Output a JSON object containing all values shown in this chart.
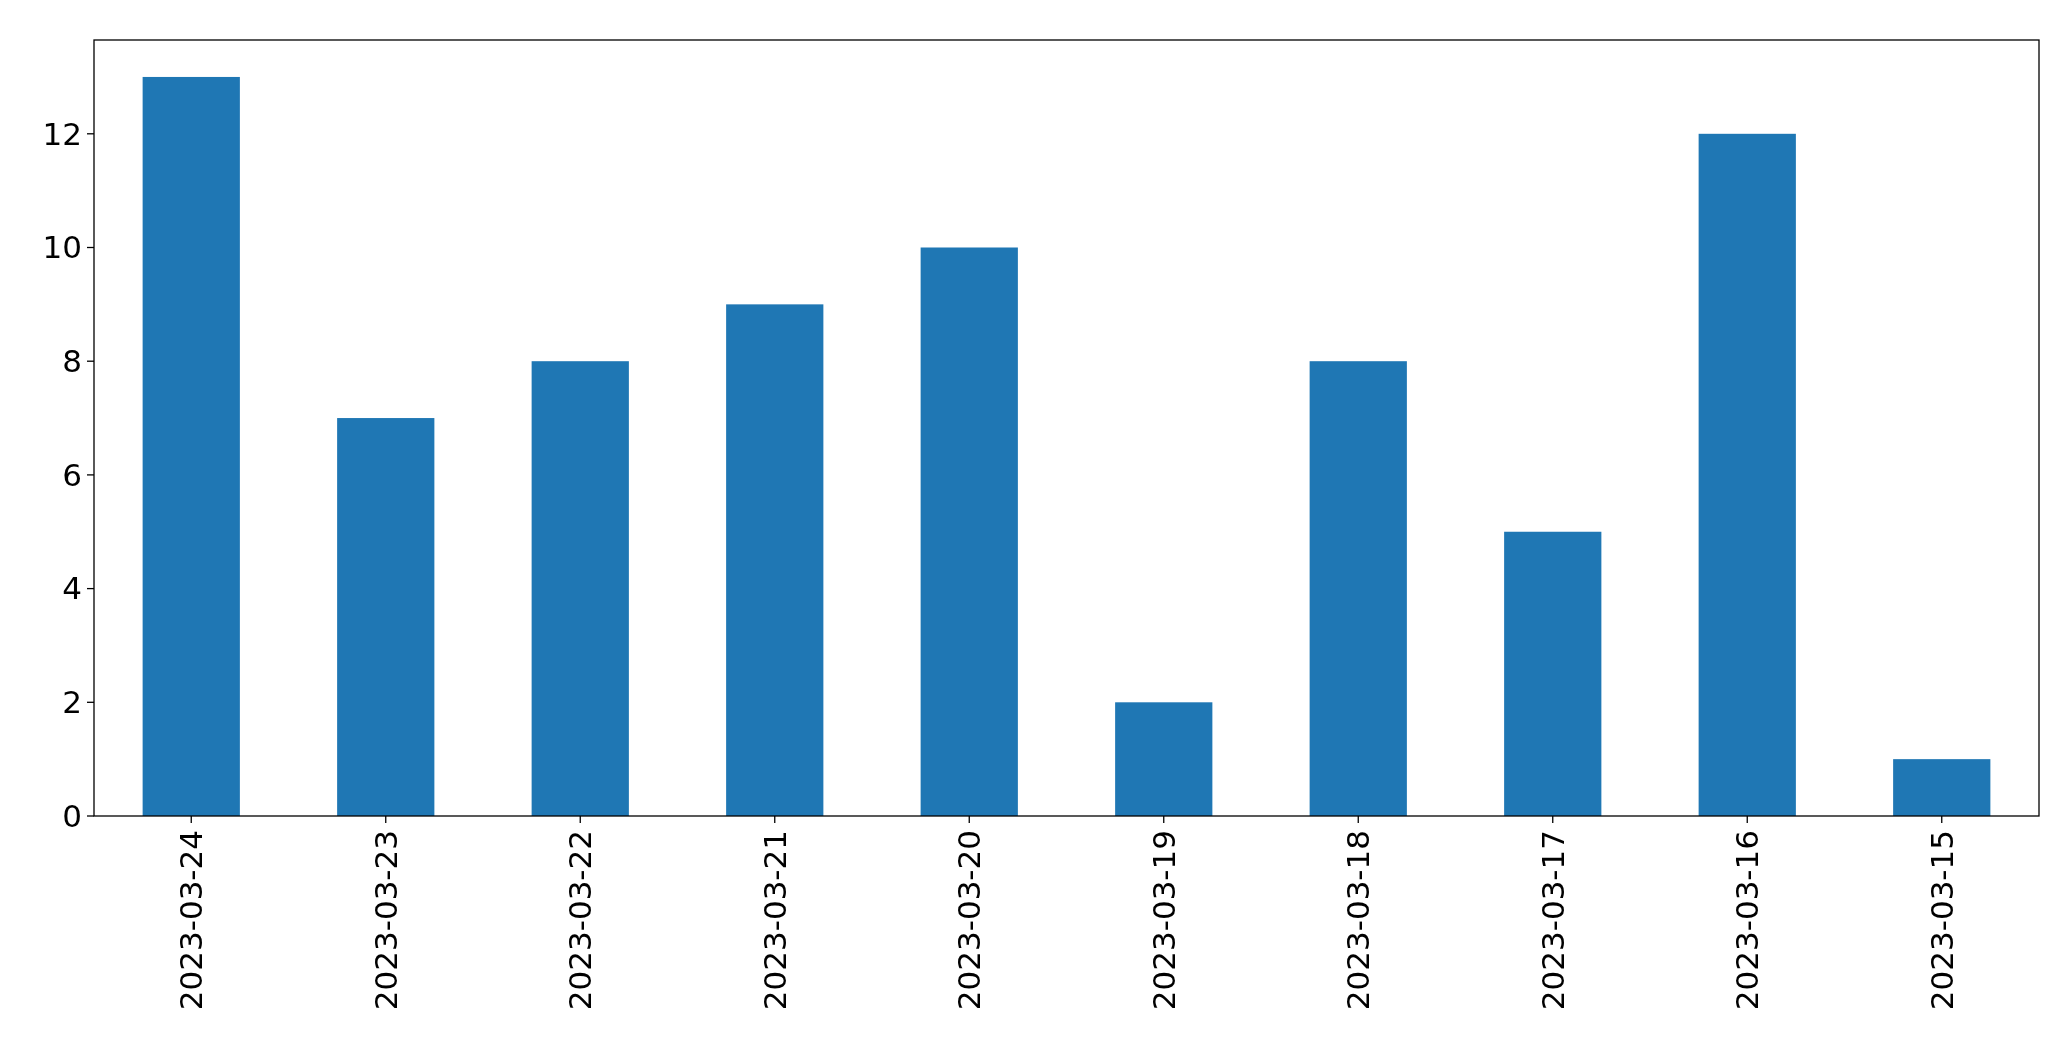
{
  "chart_data": {
    "type": "bar",
    "categories": [
      "2023-03-24",
      "2023-03-23",
      "2023-03-22",
      "2023-03-21",
      "2023-03-20",
      "2023-03-19",
      "2023-03-18",
      "2023-03-17",
      "2023-03-16",
      "2023-03-15"
    ],
    "values": [
      13,
      7,
      8,
      9,
      10,
      2,
      8,
      5,
      12,
      1
    ],
    "color": "#1f77b4",
    "ylim": [
      0,
      13.65
    ],
    "yticks": [
      0,
      2,
      4,
      6,
      8,
      10,
      12
    ],
    "grid": false
  }
}
